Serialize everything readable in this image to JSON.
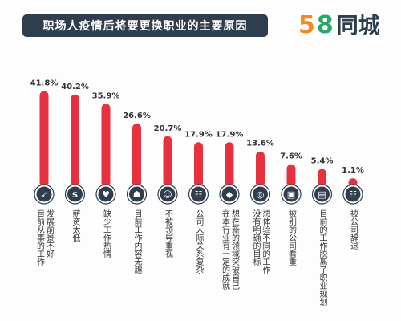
{
  "header": {
    "title": "职场人疫情后将要更换职业的主要原因",
    "brand_digit_5": "5",
    "brand_digit_8": "8",
    "brand_text": "同城"
  },
  "colors": {
    "bar": "#e8313f",
    "icon_circle": "#2f3d4d",
    "title_bg": "#2f3d4d",
    "brand_orange": "#f58a1f",
    "brand_green": "#2aa86a"
  },
  "chart_data": {
    "type": "bar",
    "title": "职场人疫情后将要更换职业的主要原因",
    "xlabel": "",
    "ylabel": "",
    "ylim": [
      0,
      45
    ],
    "grid": false,
    "categories": [
      [
        "目前从事的工作",
        "发展前景不好"
      ],
      [
        "薪资太低"
      ],
      [
        "缺少工作热情"
      ],
      [
        "目前工作内容无趣"
      ],
      [
        "不被领导重视"
      ],
      [
        "公司人际关系复杂"
      ],
      [
        "在本行业有一定的成就",
        "想在新的领域突破自己"
      ],
      [
        "没有明确的目标",
        "想体验不同的工作"
      ],
      [
        "被别的公司看重"
      ],
      [
        "目前的工作脱离了职业规划"
      ],
      [
        "被公司辞退"
      ]
    ],
    "values": [
      41.8,
      40.2,
      35.9,
      26.6,
      20.7,
      17.9,
      17.9,
      13.6,
      7.6,
      5.4,
      1.1
    ],
    "value_labels": [
      "41.8%",
      "40.2%",
      "35.9%",
      "26.6%",
      "20.7%",
      "17.9%",
      "17.9%",
      "13.6%",
      "7.6%",
      "5.4%",
      "1.1%"
    ],
    "icons": [
      "rocket-icon",
      "money-bag-icon",
      "heart-hands-icon",
      "head-lock-icon",
      "person-icon",
      "people-group-icon",
      "diamond-icon",
      "target-icon",
      "picture-frame-icon",
      "presenter-icon",
      "dismissed-group-icon"
    ]
  }
}
